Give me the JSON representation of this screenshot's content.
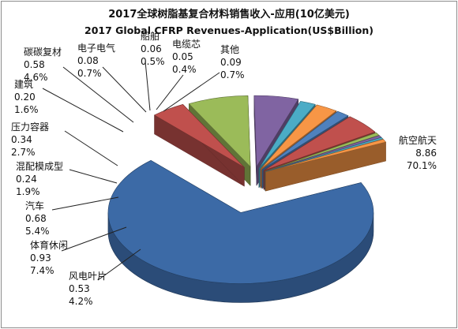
{
  "chart_data": {
    "type": "pie",
    "variant": "3d-exploded",
    "title": "2017全球树脂基复合材料销售收入-应用(10亿美元)",
    "subtitle": "2017 Global CFRP Revenues-Application(US$Billion)",
    "slices": [
      {
        "name": "航空航天",
        "value": "8.86",
        "percent": "70.1%",
        "color": "#3c6aa6"
      },
      {
        "name": "风电叶片",
        "value": "0.53",
        "percent": "4.2%",
        "color": "#c0504d"
      },
      {
        "name": "体育休闲",
        "value": "0.93",
        "percent": "7.4%",
        "color": "#9bbb59"
      },
      {
        "name": "汽车",
        "value": "0.68",
        "percent": "5.4%",
        "color": "#8064a2"
      },
      {
        "name": "混配模成型",
        "value": "0.24",
        "percent": "1.9%",
        "color": "#4bacc6"
      },
      {
        "name": "压力容器",
        "value": "0.34",
        "percent": "2.7%",
        "color": "#f79646"
      },
      {
        "name": "建筑",
        "value": "0.20",
        "percent": "1.6%",
        "color": "#4f81bd"
      },
      {
        "name": "碳碳复材",
        "value": "0.58",
        "percent": "4.6%",
        "color": "#c0504d"
      },
      {
        "name": "电子电气",
        "value": "0.08",
        "percent": "0.7%",
        "color": "#9bbb59"
      },
      {
        "name": "船舶",
        "value": "0.06",
        "percent": "0.5%",
        "color": "#8064a2"
      },
      {
        "name": "电缆芯",
        "value": "0.05",
        "percent": "0.4%",
        "color": "#4bacc6"
      },
      {
        "name": "其他",
        "value": "0.09",
        "percent": "0.7%",
        "color": "#f79646"
      }
    ]
  }
}
